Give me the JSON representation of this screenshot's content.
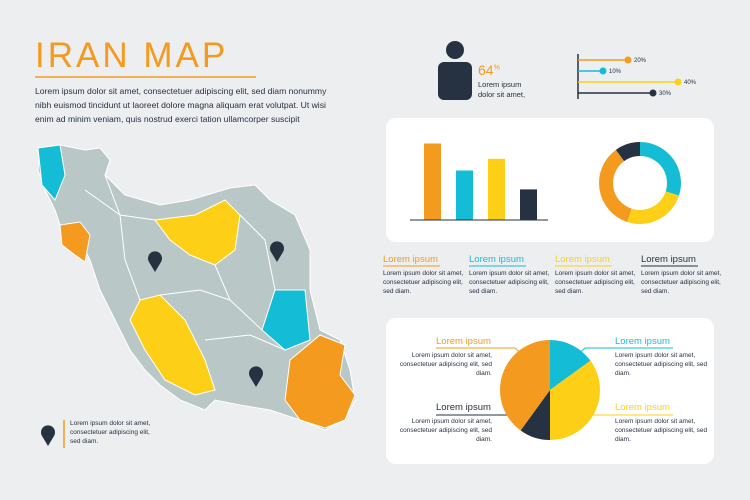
{
  "header": {
    "title": "IRAN MAP",
    "text": "Lorem ipsum dolor sit amet, consectetuer adipiscing elit, sed diam nonummy\nnibh euismod tincidunt ut laoreet dolore magna aliquam erat volutpat. Ut wisi\nenim ad minim veniam, quis nostrud exerci tation ullamcorper suscipit"
  },
  "stat": {
    "value": 64,
    "unit": "%",
    "text": "Lorem ipsum\ndolor sit amet,"
  },
  "map_caption": "Lorem ipsum dolor sit amet,\nconsectetuer adipiscing elit,\nsed diam.",
  "info_items": [
    {
      "title": "Lorem ipsum",
      "text": "Lorem ipsum dolor sit amet,\nconsectetuer adipiscing elit,\nsed diam.",
      "color": "#f39a1f"
    },
    {
      "title": "Lorem ipsum",
      "text": "Lorem ipsum dolor sit amet,\nconsectetuer adipiscing elit,\nsed diam.",
      "color": "#14bcd6"
    },
    {
      "title": "Lorem ipsum",
      "text": "Lorem ipsum dolor sit amet,\nconsectetuer adipiscing elit,\nsed diam.",
      "color": "#fdd017"
    },
    {
      "title": "Lorem ipsum",
      "text": "Lorem ipsum dolor sit amet,\nconsectetuer adipiscing elit,\nsed diam.",
      "color": "#263142"
    }
  ],
  "pie_items": [
    {
      "title": "Lorem ipsum",
      "text": "Lorem ipsum dolor sit amet,\nconsectetuer adipiscing elit, sed\ndiam.",
      "color": "#f39a1f"
    },
    {
      "title": "Lorem ipsum",
      "text": "Lorem ipsum dolor sit amet,\nconsectetuer adipiscing elit, sed\ndiam.",
      "color": "#263142"
    },
    {
      "title": "Lorem ipsum",
      "text": "Lorem ipsum dolor sit amet,\nconsectetuer adipiscing elit, sed\ndiam.",
      "color": "#14bcd6"
    },
    {
      "title": "Lorem ipsum",
      "text": "Lorem ipsum dolor sit amet,\nconsectetuer adipiscing elit, sed\ndiam.",
      "color": "#fdd017"
    }
  ],
  "chart_data": [
    {
      "type": "lollipop",
      "values": [
        20,
        10,
        40,
        30
      ],
      "value_labels": [
        "20%",
        "10%",
        "40%",
        "30%"
      ],
      "colors": [
        "#f39a1f",
        "#14bcd6",
        "#fdd017",
        "#263142"
      ],
      "xlim": [
        0,
        40
      ]
    },
    {
      "type": "bar",
      "values": [
        85,
        55,
        68,
        34
      ],
      "colors": [
        "#f39a1f",
        "#14bcd6",
        "#fdd017",
        "#263142"
      ],
      "ylim": [
        0,
        100
      ]
    },
    {
      "type": "donut",
      "values": [
        30,
        25,
        35,
        10
      ],
      "colors": [
        "#14bcd6",
        "#fdd017",
        "#f39a1f",
        "#263142"
      ]
    },
    {
      "type": "pie",
      "values": [
        15,
        35,
        10,
        40
      ],
      "colors": [
        "#14bcd6",
        "#fdd017",
        "#263142",
        "#f39a1f"
      ]
    }
  ]
}
